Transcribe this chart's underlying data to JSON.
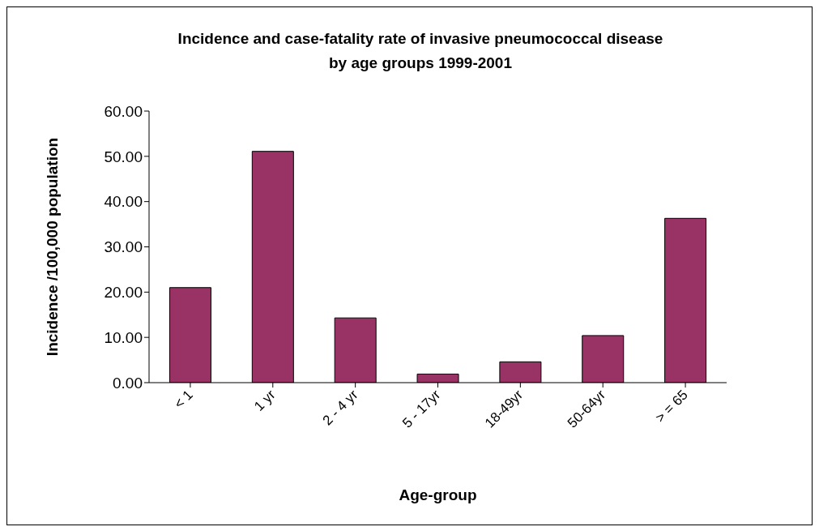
{
  "chart_data": {
    "type": "bar",
    "title": "Incidence and case-fatality rate of invasive pneumococcal disease by age groups 1999-2001",
    "xlabel": "Age-group",
    "ylabel": "Incidence /100,000 population",
    "categories": [
      "< 1",
      "1 yr",
      "2 - 4 yr",
      "5 - 17yr",
      "18-49yr",
      "50-64yr",
      "> = 65"
    ],
    "values": [
      21.0,
      51.1,
      14.3,
      1.9,
      4.6,
      10.4,
      36.3
    ],
    "color": "#993366",
    "ylim": [
      0,
      60
    ],
    "yticks": [
      {
        "value": 0,
        "label": "0.00"
      },
      {
        "value": 10,
        "label": "10.00"
      },
      {
        "value": 20,
        "label": "20.00"
      },
      {
        "value": 30,
        "label": "30.00"
      },
      {
        "value": 40,
        "label": "40.00"
      },
      {
        "value": 50,
        "label": "50.00"
      },
      {
        "value": 60,
        "label": "60.00"
      }
    ],
    "grid": false,
    "legend": false
  }
}
